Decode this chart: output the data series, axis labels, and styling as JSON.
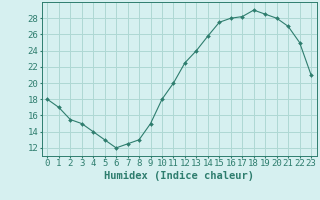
{
  "x": [
    0,
    1,
    2,
    3,
    4,
    5,
    6,
    7,
    8,
    9,
    10,
    11,
    12,
    13,
    14,
    15,
    16,
    17,
    18,
    19,
    20,
    21,
    22,
    23
  ],
  "y": [
    18,
    17,
    15.5,
    15,
    14,
    13,
    12,
    12.5,
    13,
    15,
    18,
    20,
    22.5,
    24,
    25.8,
    27.5,
    28,
    28.2,
    29,
    28.5,
    28,
    27,
    25,
    21
  ],
  "xlabel": "Humidex (Indice chaleur)",
  "xlim": [
    -0.5,
    23.5
  ],
  "ylim": [
    11,
    30
  ],
  "yticks": [
    12,
    14,
    16,
    18,
    20,
    22,
    24,
    26,
    28
  ],
  "xtick_labels": [
    "0",
    "1",
    "2",
    "3",
    "4",
    "5",
    "6",
    "7",
    "8",
    "9",
    "10",
    "11",
    "12",
    "13",
    "14",
    "15",
    "16",
    "17",
    "18",
    "19",
    "20",
    "21",
    "22",
    "23"
  ],
  "line_color": "#2e7d6e",
  "marker_color": "#2e7d6e",
  "bg_color": "#d6f0f0",
  "grid_color": "#aed8d4",
  "font_color": "#2e7d6e",
  "font_name": "monospace",
  "tick_fontsize": 6.5,
  "xlabel_fontsize": 7.5
}
